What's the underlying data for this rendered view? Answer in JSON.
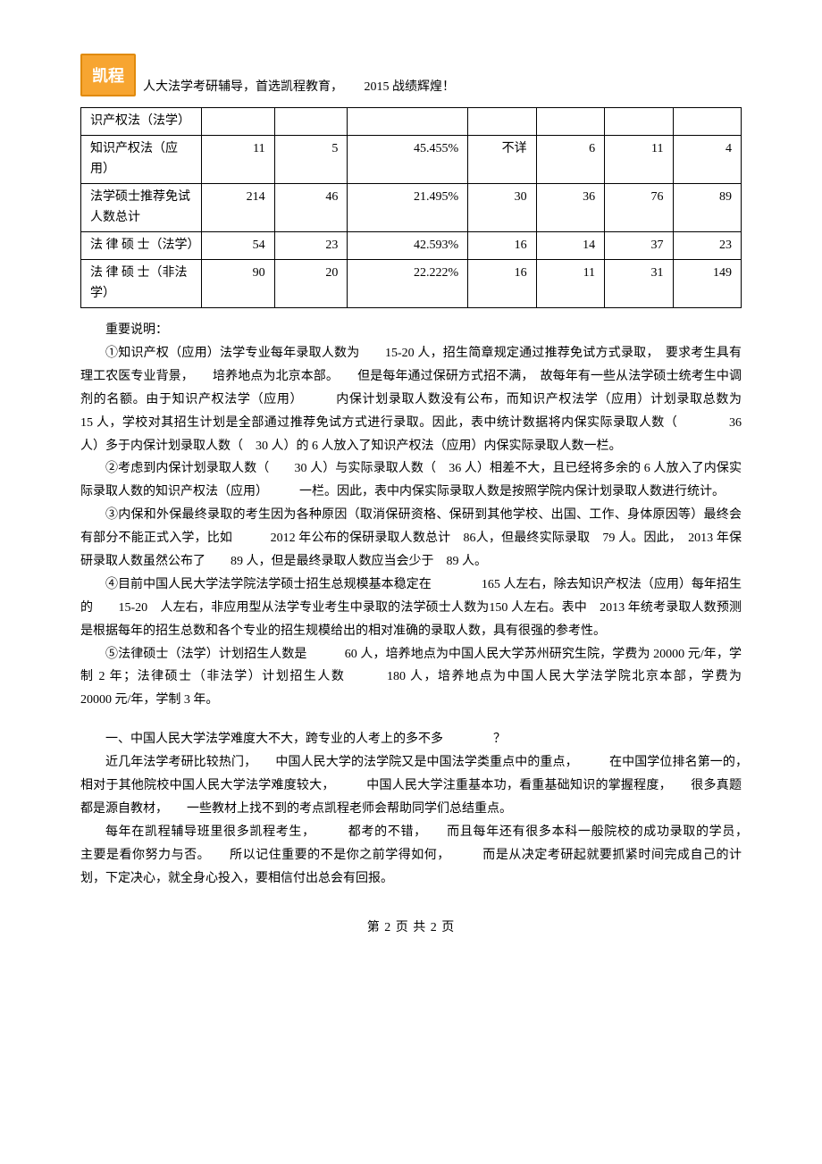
{
  "header": {
    "logo_text": "凯程",
    "tagline": "人大法学考研辅导，首选凯程教育，",
    "tagline_suffix": "2015 战绩辉煌！"
  },
  "table": {
    "rows": [
      {
        "label": "识产权法（法学）",
        "c1": "",
        "c2": "",
        "c3": "",
        "c4": "",
        "c5": "",
        "c6": "",
        "c7": ""
      },
      {
        "label": "知识产权法（应用）",
        "c1": "11",
        "c2": "5",
        "c3": "45.455%",
        "c4": "不详",
        "c5": "6",
        "c6": "11",
        "c7": "4"
      },
      {
        "label": "法学硕士推荐免试人数总计",
        "c1": "214",
        "c2": "46",
        "c3": "21.495%",
        "c4": "30",
        "c5": "36",
        "c6": "76",
        "c7": "89"
      },
      {
        "label": "法 律 硕 士（法学）",
        "c1": "54",
        "c2": "23",
        "c3": "42.593%",
        "c4": "16",
        "c5": "14",
        "c6": "37",
        "c7": "23"
      },
      {
        "label": "法 律 硕 士（非法学）",
        "c1": "90",
        "c2": "20",
        "c3": "22.222%",
        "c4": "16",
        "c5": "11",
        "c6": "31",
        "c7": "149"
      }
    ]
  },
  "notes": {
    "heading": "重要说明：",
    "p1": "①知识产权（应用）法学专业每年录取人数为　　15-20 人，招生简章规定通过推荐免试方式录取，　要求考生具有理工农医专业背景，　　培养地点为北京本部。　　但是每年通过保研方式招不满，　故每年有一些从法学硕士统考生中调剂的名额。由于知识产权法学（应用）　　　内保计划录取人数没有公布，而知识产权法学（应用）计划录取总数为　　　15 人，学校对其招生计划是全部通过推荐免试方式进行录取。因此，表中统计数据将内保实际录取人数（　　　　36 人）多于内保计划录取人数（　30 人）的 6 人放入了知识产权法（应用）内保实际录取人数一栏。",
    "p2": "②考虑到内保计划录取人数（　　30 人）与实际录取人数（　36 人）相差不大，且已经将多余的 6 人放入了内保实际录取人数的知识产权法（应用）　　　一栏。因此，表中内保实际录取人数是按照学院内保计划录取人数进行统计。",
    "p3": "③内保和外保最终录取的考生因为各种原因（取消保研资格、保研到其他学校、出国、工作、身体原因等）最终会有部分不能正式入学，比如　　　2012 年公布的保研录取人数总计　86人，但最终实际录取　79 人。因此，　2013 年保研录取人数虽然公布了　　89 人，但是最终录取人数应当会少于　89 人。",
    "p4": "④目前中国人民大学法学院法学硕士招生总规模基本稳定在　　　　165 人左右，除去知识产权法（应用）每年招生的　　15-20　人左右，非应用型从法学专业考生中录取的法学硕士人数为150 人左右。表中　2013 年统考录取人数预测是根据每年的招生总数和各个专业的招生规模给出的相对准确的录取人数，具有很强的参考性。",
    "p5": "⑤法律硕士（法学）计划招生人数是　　　60 人，培养地点为中国人民大学苏州研究生院，学费为 20000 元/年，学制 2 年；法律硕士（非法学）计划招生人数　　　180 人，培养地点为中国人民大学法学院北京本部，学费为　　　20000 元/年，学制 3 年。"
  },
  "section": {
    "q_heading": "一、中国人民大学法学难度大不大，跨专业的人考上的多不多　　　　？",
    "p1": "近几年法学考研比较热门，　　中国人民大学的法学院又是中国法学类重点中的重点，　　　在中国学位排名第一的，　　相对于其他院校中国人民大学法学难度较大，　　　中国人民大学注重基本功，看重基础知识的掌握程度，　　很多真题都是源自教材，　　一些教材上找不到的考点凯程老师会帮助同学们总结重点。",
    "p2": "每年在凯程辅导班里很多凯程考生，　　　都考的不错，　　而且每年还有很多本科一般院校的成功录取的学员，　　主要是看你努力与否。　　所以记住重要的不是你之前学得如何，　　　而是从决定考研起就要抓紧时间完成自己的计划，下定决心，就全身心投入，要相信付出总会有回报。"
  },
  "footer": {
    "text": "第 2 页 共 2 页"
  }
}
